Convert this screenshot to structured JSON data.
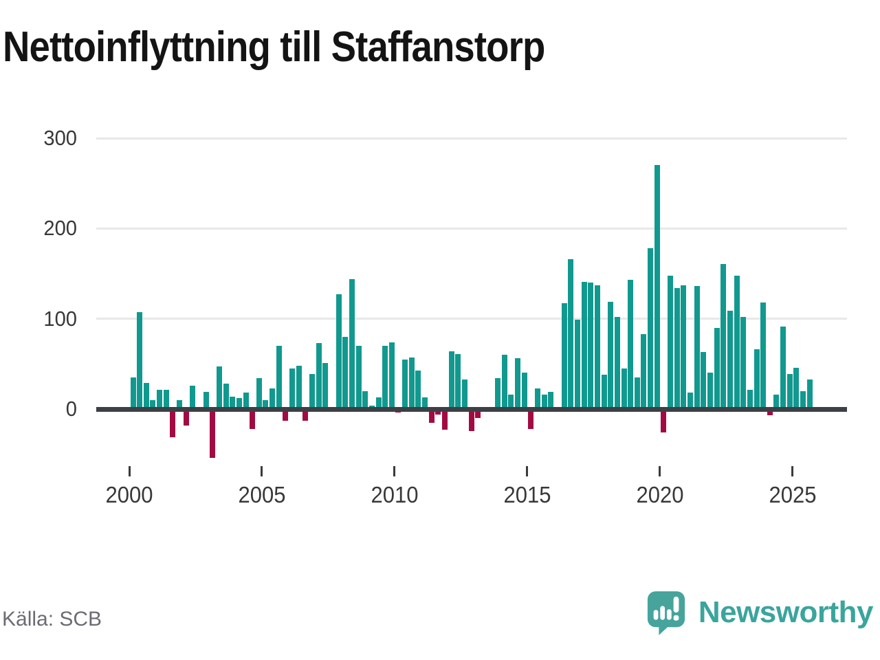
{
  "title": "Nettoinflyttning till Staffanstorp",
  "source": "Källa: SCB",
  "branding": {
    "name": "Newsworthy",
    "logo_icon": "speech-bubble-bar-chart-icon"
  },
  "colors": {
    "positive_bar": "#11998f",
    "negative_bar": "#a30a42",
    "axis_line": "#3c4044",
    "gridline": "#e8e8e8",
    "axis_text": "#383838",
    "muted_text": "#6b6b74",
    "brand_teal": "#3aa59c",
    "title_text": "#141414"
  },
  "chart_data": {
    "type": "bar",
    "title": "Nettoinflyttning till Staffanstorp",
    "frequency": "quarterly",
    "start_year": 2000,
    "x_tick_years": [
      2000,
      2005,
      2010,
      2015,
      2020,
      2025
    ],
    "y_gridlines": [
      100,
      200,
      300
    ],
    "y_tick_labels": [
      300,
      200,
      100,
      0
    ],
    "ylim": [
      -60,
      310
    ],
    "grid": true,
    "legend": false,
    "values": [
      35,
      107,
      29,
      10,
      21,
      21,
      -31,
      10,
      -18,
      26,
      0,
      19,
      -54,
      47,
      28,
      14,
      12,
      18,
      -22,
      34,
      10,
      23,
      70,
      -13,
      45,
      48,
      -13,
      39,
      73,
      51,
      0,
      127,
      80,
      144,
      70,
      20,
      4,
      13,
      70,
      74,
      -4,
      55,
      57,
      43,
      13,
      -15,
      -6,
      -23,
      64,
      61,
      33,
      -24,
      -10,
      2,
      2,
      34,
      60,
      16,
      56,
      40,
      -22,
      23,
      16,
      19,
      -3,
      117,
      166,
      99,
      141,
      140,
      137,
      38,
      119,
      102,
      45,
      143,
      35,
      83,
      178,
      270,
      -26,
      148,
      134,
      137,
      18,
      136,
      63,
      40,
      90,
      161,
      109,
      148,
      102,
      21,
      66,
      118,
      -7,
      16,
      91,
      39,
      46,
      20,
      33
    ]
  }
}
